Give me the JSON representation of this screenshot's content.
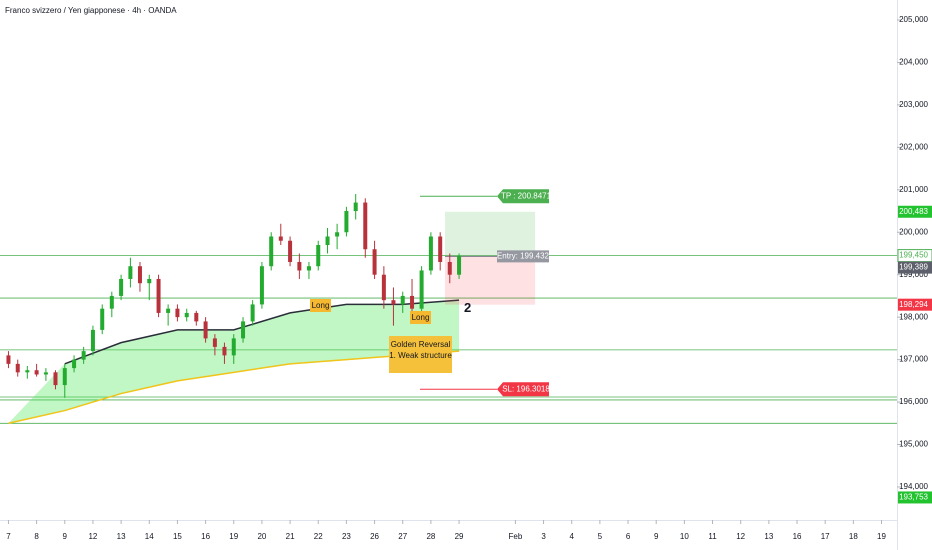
{
  "chart_data": {
    "type": "candlestick",
    "title": "Franco svizzero / Yen giapponese · 4h · OANDA",
    "xlim": [
      -0.3,
      31.55
    ],
    "ylim": [
      193.222,
      205.471
    ],
    "xticks": [
      {
        "value": 0,
        "label": "7"
      },
      {
        "value": 1,
        "label": "8"
      },
      {
        "value": 2,
        "label": "9"
      },
      {
        "value": 3,
        "label": "12"
      },
      {
        "value": 4,
        "label": "13"
      },
      {
        "value": 5,
        "label": "14"
      },
      {
        "value": 6,
        "label": "15"
      },
      {
        "value": 7,
        "label": "16"
      },
      {
        "value": 8,
        "label": "19"
      },
      {
        "value": 9,
        "label": "20"
      },
      {
        "value": 10,
        "label": "21"
      },
      {
        "value": 11,
        "label": "22"
      },
      {
        "value": 12,
        "label": "23"
      },
      {
        "value": 13,
        "label": "26"
      },
      {
        "value": 14,
        "label": "27"
      },
      {
        "value": 15,
        "label": "28"
      },
      {
        "value": 16,
        "label": "29"
      },
      {
        "value": 18,
        "label": "Feb"
      },
      {
        "value": 19,
        "label": "3"
      },
      {
        "value": 20,
        "label": "4"
      },
      {
        "value": 21,
        "label": "5"
      },
      {
        "value": 22,
        "label": "6"
      },
      {
        "value": 23,
        "label": "9"
      },
      {
        "value": 24,
        "label": "10"
      },
      {
        "value": 25,
        "label": "11"
      },
      {
        "value": 26,
        "label": "12"
      },
      {
        "value": 27,
        "label": "13"
      },
      {
        "value": 28,
        "label": "16"
      },
      {
        "value": 29,
        "label": "17"
      },
      {
        "value": 30,
        "label": "18"
      },
      {
        "value": 31,
        "label": "19"
      }
    ],
    "yticks": [
      {
        "value": 194,
        "label": "194,000"
      },
      {
        "value": 195,
        "label": "195,000"
      },
      {
        "value": 196,
        "label": "196,000"
      },
      {
        "value": 197,
        "label": "197,000"
      },
      {
        "value": 198,
        "label": "198,000"
      },
      {
        "value": 199,
        "label": "199,000"
      },
      {
        "value": 200,
        "label": "200,000"
      },
      {
        "value": 201,
        "label": "201,000"
      },
      {
        "value": 202,
        "label": "202,000"
      },
      {
        "value": 203,
        "label": "203,000"
      },
      {
        "value": 204,
        "label": "204,000"
      },
      {
        "value": 205,
        "label": "205,000"
      }
    ],
    "up_color": "#22ab2e",
    "down_color": "#b8323c",
    "candles": {
      "x": [
        0,
        0.33,
        0.67,
        1,
        1.33,
        1.67,
        2,
        2.33,
        2.67,
        3,
        3.33,
        3.67,
        4,
        4.33,
        4.67,
        5,
        5.33,
        5.67,
        6,
        6.33,
        6.67,
        7,
        7.33,
        7.67,
        8,
        8.33,
        8.67,
        9,
        9.33,
        9.67,
        10,
        10.33,
        10.67,
        11,
        11.33,
        11.67,
        12,
        12.33,
        12.67,
        13,
        13.33,
        13.67,
        14,
        14.33,
        14.67,
        15,
        15.33,
        15.67,
        16
      ],
      "open": [
        197.1,
        196.9,
        196.7,
        196.75,
        196.65,
        196.7,
        196.4,
        196.8,
        197.0,
        197.2,
        197.7,
        198.2,
        198.5,
        198.9,
        199.2,
        198.8,
        198.9,
        198.1,
        198.2,
        198.0,
        198.1,
        197.9,
        197.5,
        197.3,
        197.1,
        197.5,
        197.9,
        198.3,
        199.2,
        199.9,
        199.8,
        199.3,
        199.1,
        199.2,
        199.7,
        199.9,
        200.0,
        200.5,
        200.7,
        199.6,
        199.0,
        198.4,
        198.3,
        198.5,
        198.2,
        199.1,
        199.9,
        199.3,
        199.0
      ],
      "high": [
        197.2,
        197.0,
        196.85,
        196.9,
        196.8,
        196.75,
        196.9,
        197.1,
        197.3,
        197.8,
        198.3,
        198.6,
        199.0,
        199.4,
        199.3,
        199.0,
        199.0,
        198.3,
        198.3,
        198.2,
        198.15,
        198.0,
        197.6,
        197.4,
        197.6,
        198.0,
        198.4,
        199.3,
        200.0,
        200.2,
        199.9,
        199.5,
        199.3,
        199.8,
        200.1,
        200.2,
        200.6,
        200.9,
        200.8,
        199.8,
        199.2,
        198.7,
        198.6,
        198.9,
        199.2,
        200.0,
        200.0,
        199.5,
        199.5
      ],
      "low": [
        196.8,
        196.6,
        196.55,
        196.6,
        196.5,
        196.3,
        196.1,
        196.7,
        196.9,
        197.1,
        197.6,
        198.0,
        198.4,
        198.7,
        198.6,
        198.4,
        198.0,
        197.8,
        197.9,
        197.9,
        197.8,
        197.4,
        197.1,
        196.9,
        196.9,
        197.4,
        197.8,
        198.2,
        199.1,
        199.7,
        199.2,
        198.9,
        198.9,
        199.1,
        199.5,
        199.6,
        199.9,
        200.3,
        199.4,
        198.9,
        198.2,
        197.8,
        198.1,
        198.0,
        198.1,
        199.0,
        199.1,
        198.8,
        198.9
      ],
      "close": [
        196.9,
        196.7,
        196.75,
        196.65,
        196.7,
        196.4,
        196.8,
        197.0,
        197.2,
        197.7,
        198.2,
        198.5,
        198.9,
        199.2,
        198.8,
        198.9,
        198.1,
        198.2,
        198.0,
        198.1,
        197.9,
        197.5,
        197.3,
        197.1,
        197.5,
        197.9,
        198.3,
        199.2,
        199.9,
        199.8,
        199.3,
        199.1,
        199.2,
        199.7,
        199.9,
        200.0,
        200.5,
        200.7,
        199.6,
        199.0,
        198.4,
        198.3,
        198.5,
        198.2,
        199.1,
        199.9,
        199.3,
        199.0,
        199.45
      ]
    },
    "overlays": [
      {
        "color": "#2a2e39",
        "x": [
          2,
          4,
          6,
          8,
          10,
          12,
          14,
          16
        ],
        "values": [
          196.9,
          197.4,
          197.7,
          197.7,
          198.1,
          198.3,
          198.3,
          198.4
        ]
      },
      {
        "color": "#f0c419",
        "x": [
          0,
          2,
          4,
          6,
          8,
          10,
          12,
          14,
          16
        ],
        "values": [
          195.5,
          195.8,
          196.2,
          196.5,
          196.7,
          196.9,
          197.0,
          197.1,
          197.2
        ]
      }
    ],
    "hlines": [
      199.45,
      198.45,
      197.23,
      196.12,
      196.05,
      195.5
    ],
    "hline_color": "#4caf50",
    "position": {
      "x": [
        15.5,
        18.7
      ],
      "entry": 199.432,
      "entry_label": "Entry: 199.432",
      "tp": 200.8471,
      "tp_label": "TP : 200.8471",
      "tp_zone": 200.4831,
      "sl": 196.3018,
      "sl_label": "SL: 196.3018",
      "sl_zone": 198.294,
      "tp_color": "#4caf50",
      "sl_color": "#f23645"
    },
    "price_labels": [
      {
        "value": 200.483,
        "label": "200,483",
        "color": "#22c32e",
        "text_color": "#ffffff"
      },
      {
        "value": 199.45,
        "label": "199,450",
        "color": "#ffffff",
        "text_color": "#4caf50"
      },
      {
        "value": 199.389,
        "label": "199,389",
        "color": "#5d606b",
        "text_color": "#ffffff"
      },
      {
        "value": 198.294,
        "label": "198,294",
        "color": "#f23645",
        "text_color": "#ffffff"
      },
      {
        "value": 193.753,
        "label": "193,753",
        "color": "#22c32e",
        "text_color": "#ffffff"
      }
    ],
    "annotations": {
      "long_1": "Long",
      "long_2": "Long",
      "golden_1": "Golden Reversal",
      "golden_2": "1.  Weak structure",
      "wave": "2"
    }
  }
}
